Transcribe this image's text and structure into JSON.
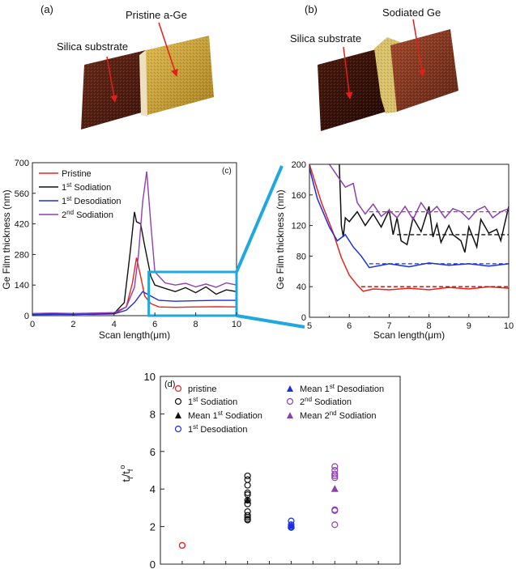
{
  "panel_labels": {
    "a": "(a)",
    "b": "(b)",
    "c": "(c)",
    "d": "(d)"
  },
  "afm": {
    "a": {
      "labels": [
        "Silica substrate",
        "Pristine a-Ge"
      ],
      "colors": {
        "substrate": "#5a1f12",
        "film": "#c9a23a",
        "arrow": "#e0201b"
      }
    },
    "b": {
      "labels": [
        "Silica substrate",
        "Sodiated Ge"
      ],
      "colors": {
        "substrate": "#3f1508",
        "film": "#8a3a22",
        "ridge": "#d9c26a",
        "arrow": "#e0201b"
      }
    }
  },
  "chart_data": [
    {
      "id": "c",
      "type": "line",
      "title": "",
      "xlabel": "Scan length(μm)",
      "ylabel": "Ge Film thickness (nm)",
      "xlim": [
        0,
        10
      ],
      "ylim": [
        0,
        700
      ],
      "xticks": [
        0,
        2,
        4,
        6,
        8,
        10
      ],
      "yticks": [
        0,
        140,
        280,
        420,
        560,
        700
      ],
      "zoom_box": {
        "x": [
          5.7,
          10
        ],
        "y": [
          0,
          200
        ],
        "color": "#1fa8e0"
      },
      "series": [
        {
          "name": "Pristine",
          "name_base": "Pristine",
          "sup": "",
          "name_rest": "",
          "color": "#e8231b",
          "x": [
            0,
            1,
            2,
            3,
            4,
            4.6,
            4.9,
            5.1,
            5.3,
            5.5,
            5.8,
            6.2,
            7,
            8,
            9,
            10
          ],
          "y": [
            5,
            6,
            7,
            6,
            8,
            40,
            150,
            265,
            180,
            90,
            55,
            40,
            38,
            40,
            41,
            40
          ]
        },
        {
          "name": "1st Sodiation",
          "name_base": "1",
          "sup": "st",
          "name_rest": " Sodiation",
          "color": "#111111",
          "x": [
            0,
            1,
            2,
            3,
            4,
            4.5,
            4.8,
            5.0,
            5.1,
            5.3,
            5.5,
            5.8,
            6.0,
            6.5,
            7,
            7.5,
            8,
            8.5,
            9,
            9.5,
            10
          ],
          "y": [
            5,
            8,
            6,
            7,
            10,
            60,
            300,
            475,
            430,
            420,
            320,
            180,
            140,
            125,
            110,
            128,
            105,
            132,
            98,
            118,
            110
          ]
        },
        {
          "name": "1st Desodiation",
          "name_base": "1",
          "sup": "st",
          "name_rest": " Desodiation",
          "color": "#1b2fe0",
          "x": [
            0,
            1,
            2,
            3,
            4,
            4.6,
            5.0,
            5.4,
            5.8,
            6.2,
            7,
            8,
            9,
            10
          ],
          "y": [
            5,
            6,
            5,
            7,
            8,
            25,
            60,
            110,
            90,
            70,
            66,
            68,
            70,
            70
          ]
        },
        {
          "name": "2nd Sodiation",
          "name_base": "2",
          "sup": "nd",
          "name_rest": " Sodiation",
          "color": "#8e3fb0",
          "x": [
            0,
            1,
            2,
            3,
            4,
            4.6,
            5.0,
            5.2,
            5.4,
            5.6,
            5.8,
            6.0,
            6.5,
            7,
            7.5,
            8,
            8.5,
            9,
            9.5,
            10
          ],
          "y": [
            10,
            12,
            10,
            12,
            14,
            40,
            130,
            280,
            520,
            660,
            420,
            200,
            150,
            140,
            148,
            132,
            145,
            130,
            150,
            140
          ]
        }
      ]
    },
    {
      "id": "zoom",
      "type": "line",
      "title": "",
      "xlabel": "Scan length(μm)",
      "ylabel": "Ge Film thickness (nm)",
      "xlim": [
        5,
        10
      ],
      "ylim": [
        0,
        200
      ],
      "xticks": [
        5,
        6,
        7,
        8,
        9,
        10
      ],
      "yticks": [
        0,
        40,
        80,
        120,
        160,
        200
      ],
      "mean_lines": [
        {
          "series": "Pristine",
          "y": 40,
          "x": [
            6.3,
            10
          ],
          "color": "#a01410"
        },
        {
          "series": "1st Sodiation",
          "y": 108,
          "x": [
            7.2,
            10
          ],
          "color": "#111111"
        },
        {
          "series": "1st Desodiation",
          "y": 70,
          "x": [
            6.5,
            10
          ],
          "color": "#1b2fe0"
        },
        {
          "series": "2nd Sodiation",
          "y": 138,
          "x": [
            6.5,
            10
          ],
          "color": "#8e3fb0"
        }
      ],
      "series": [
        {
          "name": "Pristine",
          "color": "#e8231b",
          "x": [
            5,
            5.3,
            5.6,
            5.8,
            6.0,
            6.2,
            6.35,
            6.6,
            7,
            7.5,
            8,
            8.5,
            9,
            9.5,
            10
          ],
          "y": [
            200,
            150,
            110,
            78,
            55,
            42,
            34,
            37,
            36,
            38,
            36,
            39,
            37,
            40,
            38
          ]
        },
        {
          "name": "1st Sodiation",
          "color": "#111111",
          "x": [
            5.75,
            5.8,
            5.85,
            5.9,
            6.0,
            6.2,
            6.4,
            6.6,
            6.8,
            7.0,
            7.1,
            7.2,
            7.3,
            7.45,
            7.6,
            7.8,
            8.0,
            8.1,
            8.2,
            8.3,
            8.5,
            8.6,
            8.8,
            8.9,
            9.0,
            9.2,
            9.3,
            9.5,
            9.7,
            9.8,
            10
          ],
          "y": [
            200,
            120,
            105,
            130,
            125,
            138,
            120,
            135,
            118,
            140,
            108,
            130,
            100,
            95,
            130,
            112,
            145,
            105,
            122,
            98,
            120,
            108,
            100,
            85,
            118,
            92,
            128,
            110,
            115,
            100,
            145
          ]
        },
        {
          "name": "1st Desodiation",
          "color": "#1b2fe0",
          "x": [
            5,
            5.2,
            5.5,
            5.7,
            5.9,
            6.1,
            6.3,
            6.5,
            7,
            7.5,
            8,
            8.5,
            9,
            9.5,
            10
          ],
          "y": [
            195,
            155,
            118,
            100,
            108,
            92,
            80,
            65,
            70,
            66,
            71,
            68,
            70,
            67,
            70
          ]
        },
        {
          "name": "2nd Sodiation",
          "color": "#8e3fb0",
          "x": [
            5.5,
            5.7,
            5.9,
            6.1,
            6.2,
            6.4,
            6.6,
            6.8,
            7.0,
            7.2,
            7.4,
            7.6,
            7.8,
            8.0,
            8.2,
            8.4,
            8.6,
            8.8,
            9.0,
            9.2,
            9.4,
            9.6,
            9.8,
            10
          ],
          "y": [
            200,
            185,
            170,
            175,
            150,
            135,
            148,
            132,
            140,
            130,
            145,
            128,
            150,
            135,
            145,
            130,
            142,
            138,
            128,
            140,
            145,
            130,
            138,
            142
          ]
        }
      ]
    },
    {
      "id": "d",
      "type": "scatter",
      "title": "",
      "xlabel": "",
      "ylabel_base": "t",
      "ylabel_sub": "f",
      "ylabel_slash": "/t",
      "ylabel_sub2": "f",
      "ylabel_sup2": "o",
      "ylim": [
        0,
        10
      ],
      "yticks": [
        0,
        2,
        4,
        6,
        8,
        10
      ],
      "xlim": [
        0,
        11
      ],
      "series": [
        {
          "name": "pristine",
          "name_base": "pristine",
          "sup": "",
          "name_rest": "",
          "marker": "circle",
          "color": "#e8231b",
          "x": [
            1,
            1
          ],
          "y": [
            1.0,
            1.0
          ]
        },
        {
          "name": "1st Sodiation",
          "name_base": "1",
          "sup": "st",
          "name_rest": " Sodiation",
          "marker": "circle",
          "color": "#111111",
          "x": [
            4,
            4,
            4,
            4,
            4,
            4,
            4,
            4,
            4,
            4,
            4,
            4
          ],
          "y": [
            4.7,
            4.5,
            4.2,
            3.8,
            3.7,
            3.4,
            3.2,
            2.8,
            2.6,
            2.5,
            2.4,
            2.35
          ]
        },
        {
          "name": "Mean 1st Sodiation",
          "name_base": "Mean 1",
          "sup": "st",
          "name_rest": " Sodiation",
          "marker": "triangle",
          "color": "#111111",
          "x": [
            4
          ],
          "y": [
            3.4
          ]
        },
        {
          "name": "1st Desodiation",
          "name_base": "1",
          "sup": "st",
          "name_rest": " Desodiation",
          "marker": "circle",
          "color": "#1b2fe0",
          "x": [
            6,
            6,
            6,
            6
          ],
          "y": [
            2.3,
            2.1,
            2.0,
            1.95
          ]
        },
        {
          "name": "Mean 1st Desodiation",
          "name_base": "Mean 1",
          "sup": "st",
          "name_rest": " Desodiation",
          "marker": "triangle",
          "color": "#1b2fe0",
          "x": [
            6
          ],
          "y": [
            2.05
          ]
        },
        {
          "name": "2nd Sodiation",
          "name_base": "2",
          "sup": "nd",
          "name_rest": " Sodiation",
          "marker": "circle",
          "color": "#8e3fb0",
          "x": [
            8,
            8,
            8,
            8,
            8,
            8,
            8,
            8
          ],
          "y": [
            5.2,
            5.0,
            4.8,
            4.7,
            4.6,
            2.9,
            2.85,
            2.1
          ]
        },
        {
          "name": "Mean 2nd Sodiation",
          "name_base": "Mean 2",
          "sup": "nd",
          "name_rest": " Sodiation",
          "marker": "triangle",
          "color": "#8e3fb0",
          "x": [
            8
          ],
          "y": [
            4.0
          ]
        }
      ]
    }
  ]
}
